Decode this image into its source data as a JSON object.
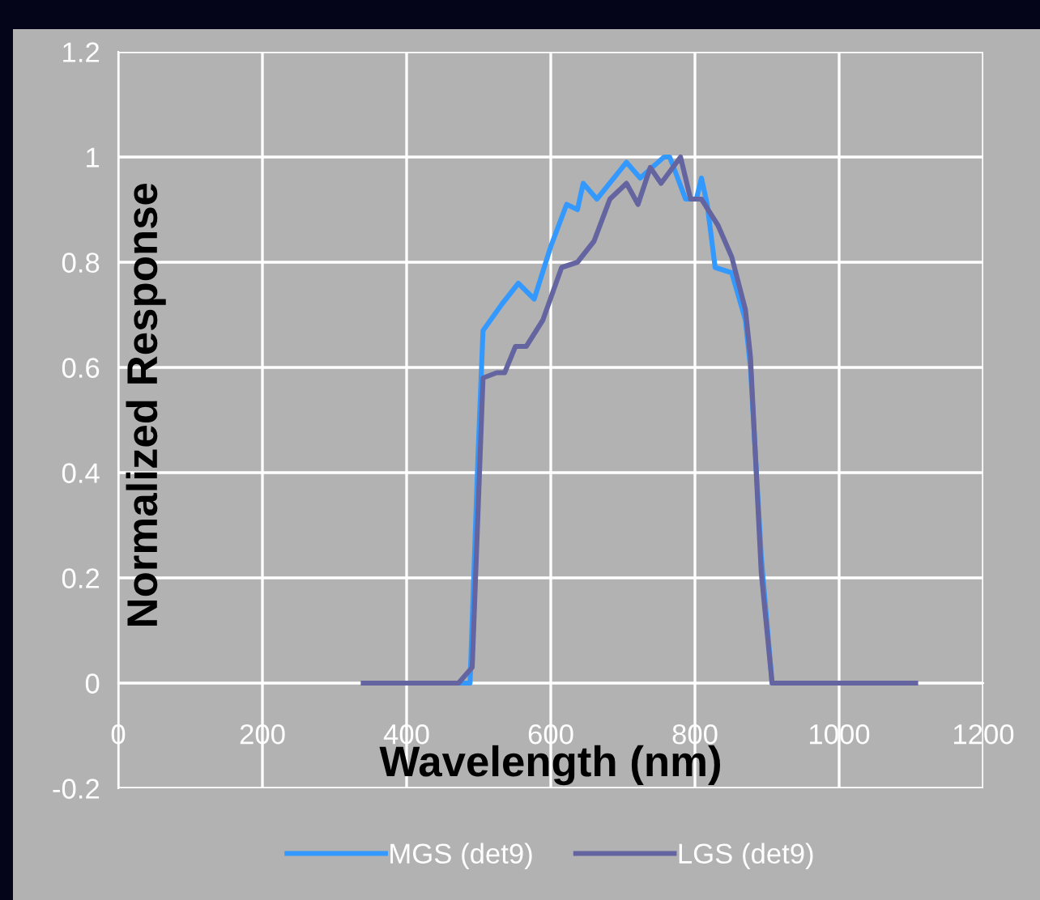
{
  "chart_data": {
    "type": "line",
    "xlabel": "Wavelength (nm)",
    "ylabel": "Normalized Response",
    "xlim": [
      0,
      1200
    ],
    "xticks": [
      0,
      200,
      400,
      600,
      800,
      1000,
      1200
    ],
    "ylim": [
      -0.2,
      1.2
    ],
    "yticks": [
      -0.2,
      0,
      0.2,
      0.4,
      0.6,
      0.8,
      1,
      1.2
    ],
    "grid": true,
    "legend": "bottom",
    "marker": "none",
    "line_style": "solid",
    "series": [
      {
        "name": "MGS (det9)",
        "color": "#3399ff",
        "x": [
          340,
          488,
          499,
          506,
          532,
          555,
          577,
          600,
          622,
          637,
          645,
          664,
          705,
          724,
          757,
          765,
          787,
          802,
          809,
          817,
          828,
          851,
          870,
          877,
          892,
          907,
          1106
        ],
        "values": [
          0,
          0,
          0.43,
          0.67,
          0.72,
          0.76,
          0.73,
          0.83,
          0.91,
          0.9,
          0.95,
          0.92,
          0.99,
          0.96,
          1,
          1,
          0.92,
          0.92,
          0.96,
          0.91,
          0.79,
          0.78,
          0.69,
          0.6,
          0.24,
          0,
          0
        ]
      },
      {
        "name": "LGS (det9)",
        "color": "#6464a0",
        "x": [
          340,
          472,
          491,
          506,
          525,
          536,
          551,
          566,
          589,
          615,
          637,
          660,
          682,
          705,
          721,
          738,
          753,
          780,
          794,
          809,
          832,
          851,
          870,
          877,
          892,
          907,
          1106
        ],
        "values": [
          0,
          0,
          0.03,
          0.58,
          0.59,
          0.59,
          0.64,
          0.64,
          0.69,
          0.79,
          0.8,
          0.84,
          0.92,
          0.95,
          0.91,
          0.98,
          0.95,
          1,
          0.92,
          0.92,
          0.87,
          0.81,
          0.71,
          0.62,
          0.21,
          0,
          0
        ]
      }
    ]
  }
}
